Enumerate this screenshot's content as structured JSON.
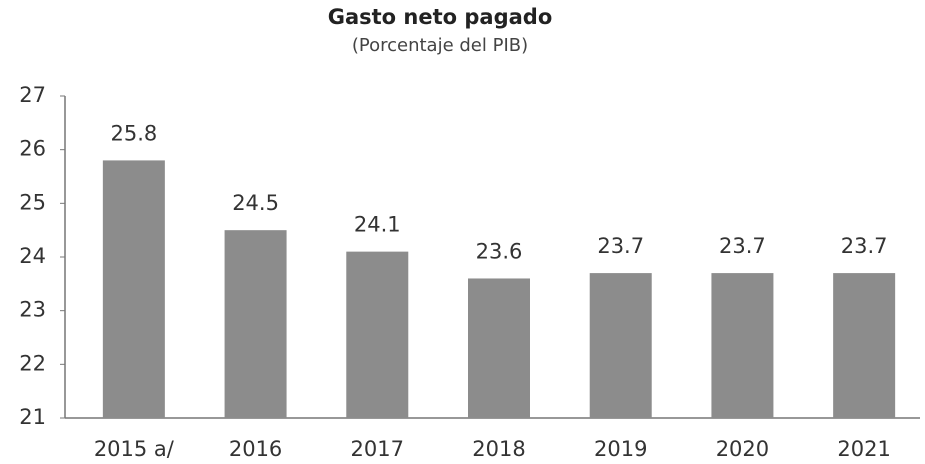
{
  "chart_data": {
    "type": "bar",
    "title": "Gasto neto pagado",
    "subtitle": "(Porcentaje del PIB)",
    "categories": [
      "2015 a/",
      "2016",
      "2017",
      "2018",
      "2019",
      "2020",
      "2021"
    ],
    "values": [
      25.8,
      24.5,
      24.1,
      23.6,
      23.7,
      23.7,
      23.7
    ],
    "color": "#8c8c8c",
    "ylim": [
      21,
      27
    ],
    "yticks": [
      21,
      22,
      23,
      24,
      25,
      26,
      27
    ],
    "grid": false
  }
}
